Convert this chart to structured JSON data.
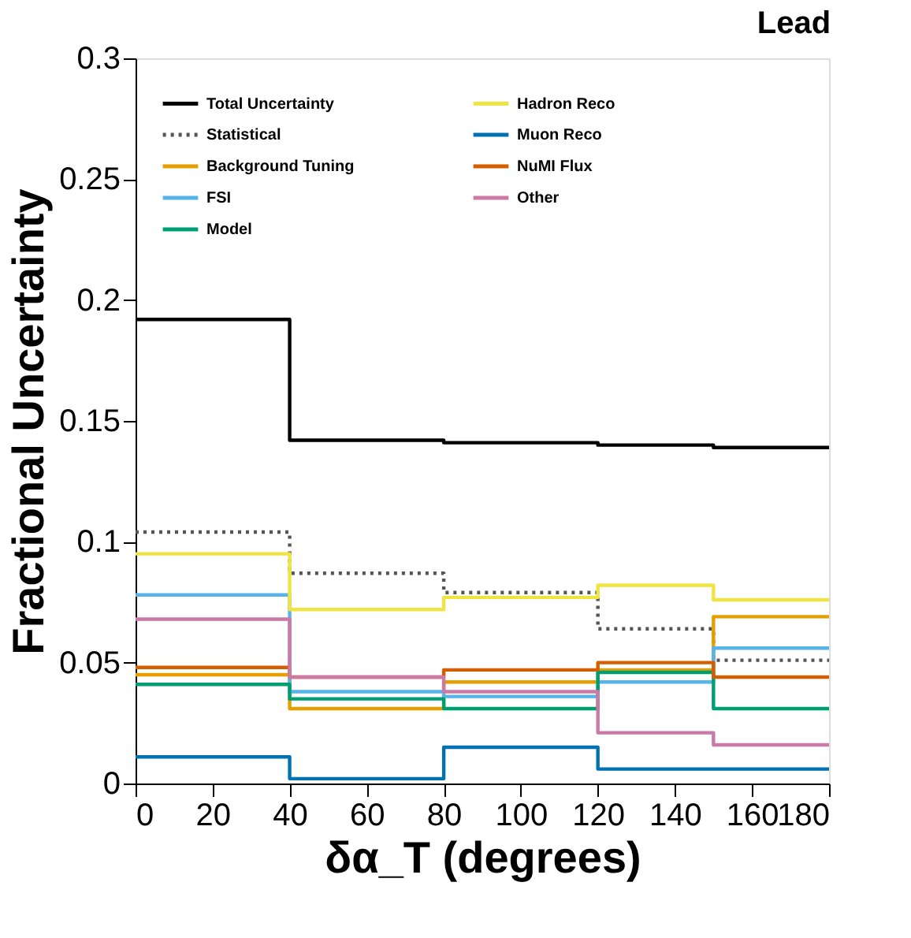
{
  "chart_data": {
    "type": "histogram",
    "title": "Lead",
    "xlabel": "δα_T (degrees)",
    "ylabel": "Fractional Uncertainty",
    "bins": [
      0,
      40,
      80,
      120,
      150,
      180
    ],
    "xlim": [
      0,
      180
    ],
    "xticks": [
      0,
      20,
      40,
      60,
      80,
      100,
      120,
      140,
      160,
      180
    ],
    "ylim": [
      0,
      0.3
    ],
    "yticks": [
      0,
      0.05,
      0.1,
      0.15,
      0.2,
      0.25,
      0.3
    ],
    "grid": false,
    "legend": "top",
    "marker": "none",
    "series": [
      {
        "name": "Total Uncertainty",
        "color": "#000000",
        "line_style": "solid",
        "values": [
          0.192,
          0.142,
          0.141,
          0.14,
          0.139
        ]
      },
      {
        "name": "Statistical",
        "color": "#555555",
        "line_style": "dotted",
        "values": [
          0.104,
          0.087,
          0.079,
          0.064,
          0.051
        ]
      },
      {
        "name": "Background Tuning",
        "color": "#e69f00",
        "line_style": "solid",
        "values": [
          0.045,
          0.031,
          0.042,
          0.047,
          0.069
        ]
      },
      {
        "name": "FSI",
        "color": "#56b4e9",
        "line_style": "solid",
        "values": [
          0.078,
          0.038,
          0.036,
          0.042,
          0.056
        ]
      },
      {
        "name": "Model",
        "color": "#009e73",
        "line_style": "solid",
        "values": [
          0.041,
          0.035,
          0.031,
          0.046,
          0.031
        ]
      },
      {
        "name": "Hadron Reco",
        "color": "#f0e442",
        "line_style": "solid",
        "values": [
          0.095,
          0.072,
          0.077,
          0.082,
          0.076
        ]
      },
      {
        "name": "Muon Reco",
        "color": "#0072b2",
        "line_style": "solid",
        "values": [
          0.011,
          0.002,
          0.015,
          0.006,
          0.006
        ]
      },
      {
        "name": "NuMI Flux",
        "color": "#d55e00",
        "line_style": "solid",
        "values": [
          0.048,
          0.044,
          0.047,
          0.05,
          0.044
        ]
      },
      {
        "name": "Other",
        "color": "#cc79a7",
        "line_style": "solid",
        "values": [
          0.068,
          0.044,
          0.038,
          0.021,
          0.016
        ]
      }
    ]
  }
}
